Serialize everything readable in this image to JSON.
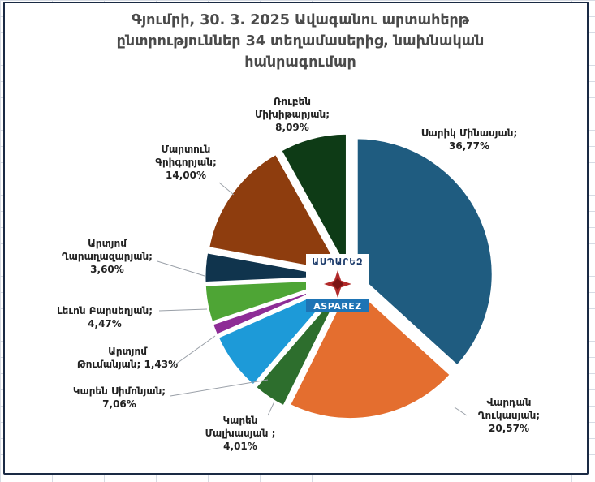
{
  "chart_data": {
    "type": "pie",
    "title_lines": [
      "Գյումրի, 30. 3. 2025 Ավագանու արտահերթ",
      "ընտրություններ 34 տեղամասերից, նախնական",
      "հանրագումար"
    ],
    "slices": [
      {
        "label": [
          "Սարիկ Մինասյան;"
        ],
        "value_text": "36,77%",
        "value": 36.77,
        "color": "#1f5c80",
        "explode": 0.06,
        "label_pos": "right"
      },
      {
        "label": [
          "Վարդան",
          "Ղուկասյան;"
        ],
        "value_text": "20,57%",
        "value": 20.57,
        "color": "#e46e2f",
        "explode": 0.04,
        "label_pos": "bottom-right"
      },
      {
        "label": [
          "Կարեն",
          "Մալխասյան ;"
        ],
        "value_text": "4,01%",
        "value": 4.01,
        "color": "#2d6e2d",
        "explode": 0.06,
        "label_pos": "bottom"
      },
      {
        "label": [
          "Կարեն Սիմոնյան;"
        ],
        "value_text": "7,06%",
        "value": 7.06,
        "color": "#1d9ad8",
        "explode": 0.06,
        "label_pos": "left"
      },
      {
        "label": [
          "Արտյոմ",
          "Թումանյան; 1,43%"
        ],
        "value_text": "",
        "value": 1.43,
        "color": "#8e2d96",
        "explode": 0.06,
        "label_pos": "left"
      },
      {
        "label": [
          "Լեւոն Բարսեղյան;"
        ],
        "value_text": "4,47%",
        "value": 4.47,
        "color": "#4ea535",
        "explode": 0.06,
        "label_pos": "left"
      },
      {
        "label": [
          "Արտյոմ",
          "Ղարաղազարյան;"
        ],
        "value_text": "3,60%",
        "value": 3.6,
        "color": "#10344d",
        "explode": 0.06,
        "label_pos": "left"
      },
      {
        "label": [
          "Մարտուն",
          "Գրիգորյան;"
        ],
        "value_text": "14,00%",
        "value": 14.0,
        "color": "#8e3d0e",
        "explode": 0.06,
        "label_pos": "top-left"
      },
      {
        "label": [
          "Ռուբեն",
          "Միխիթարյան;"
        ],
        "value_text": "8,09%",
        "value": 8.09,
        "color": "#0e3b16",
        "explode": 0.06,
        "label_pos": "top"
      }
    ]
  },
  "logo": {
    "top_text": "ԱՍՊԱՐԵԶ",
    "bottom_text": "ASPAREZ",
    "emblem_color": "#b22a2a",
    "bottom_bg": "#1e74b5"
  }
}
